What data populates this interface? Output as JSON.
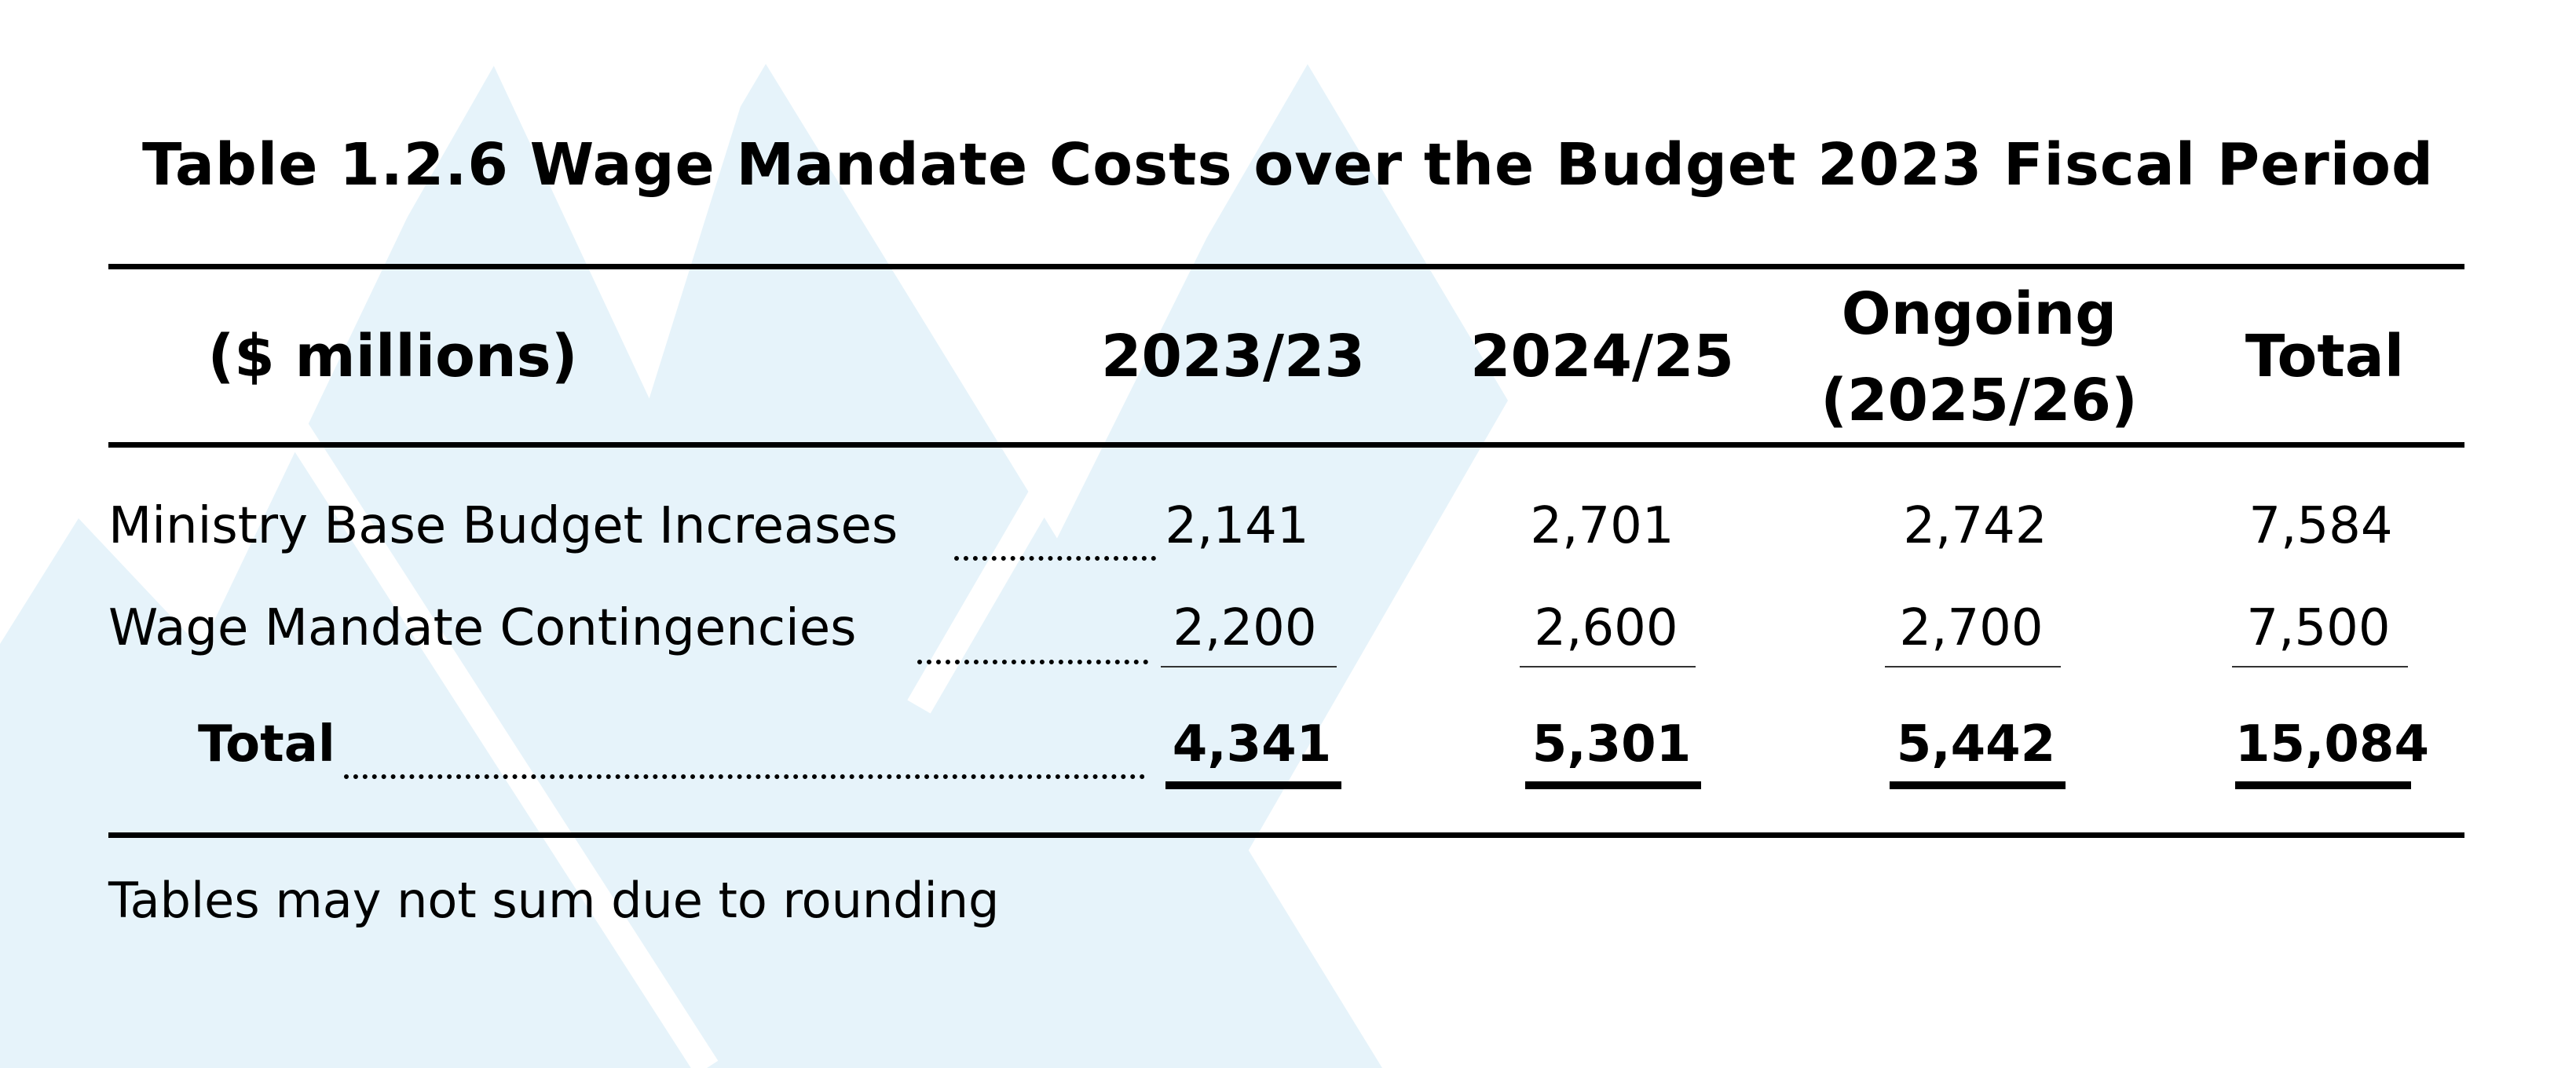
{
  "table": {
    "title": "Table 1.2.6 Wage Mandate Costs over the Budget 2023 Fiscal Period",
    "header": {
      "unit": "($ millions)",
      "columns": [
        {
          "line1": "2023/23",
          "line2": ""
        },
        {
          "line1": "2024/25",
          "line2": ""
        },
        {
          "line1": "Ongoing",
          "line2": "(2025/26)"
        },
        {
          "line1": "Total",
          "line2": ""
        }
      ]
    },
    "rows": [
      {
        "label": "Ministry Base Budget Increases",
        "values": [
          "2,141",
          "2,701",
          "2,742",
          "7,584"
        ]
      },
      {
        "label": "Wage Mandate Contingencies",
        "values": [
          "2,200",
          "2,600",
          "2,700",
          "7,500"
        ]
      },
      {
        "label": "Total",
        "values": [
          "4,341",
          "5,301",
          "5,442",
          "15,084"
        ]
      }
    ],
    "note": "Tables may not sum due to rounding"
  },
  "background": {
    "triangle_color": "#E6F3FA"
  }
}
